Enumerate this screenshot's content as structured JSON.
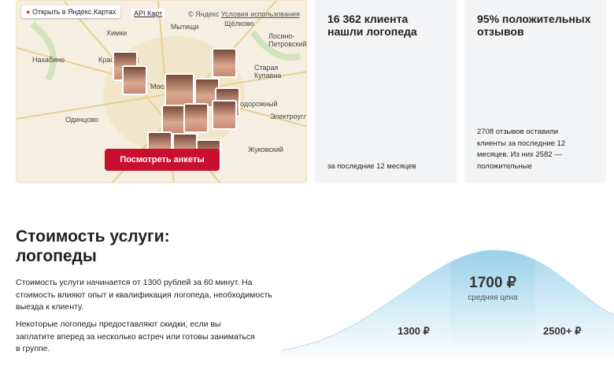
{
  "map": {
    "open_link": "Открыть в Яндекс.Картах",
    "api_link": "API Карт",
    "copyright": "© Яндекс",
    "terms": "Условия использования",
    "places": [
      "Химки",
      "Мытищи",
      "Щёлково",
      "Лосино-Петровский",
      "Нахабино",
      "Красногорск",
      "Старая Купавна",
      "Москва",
      "Железнодорожный",
      "Одинцово",
      "Электроугли",
      "Жуковский"
    ],
    "button": "Посмотреть анкеты"
  },
  "stats": [
    {
      "title": "16 362 клиента нашли логопеда",
      "note": "за последние 12 месяцев"
    },
    {
      "title": "95% положительных отзывов",
      "note": "2708 отзывов оставили клиенты за последние 12 месяцев. Из них 2582 — положительные"
    }
  ],
  "price": {
    "title": "Стоимость услуги: логопеды",
    "paragraphs": [
      "Стоимость услуги начинается от 1300 рублей за 60 минут. На стоимость влияют опыт и квалификация логопеда, необходимость выезда к клиенту.",
      "Некоторые логопеды предоставляют скидки, если вы заплатите вперед за несколько встреч или готовы заниматься в группе."
    ],
    "min": "1300 ₽",
    "avg": "1700 ₽",
    "avg_label": "средняя цена",
    "max": "2500+ ₽"
  }
}
